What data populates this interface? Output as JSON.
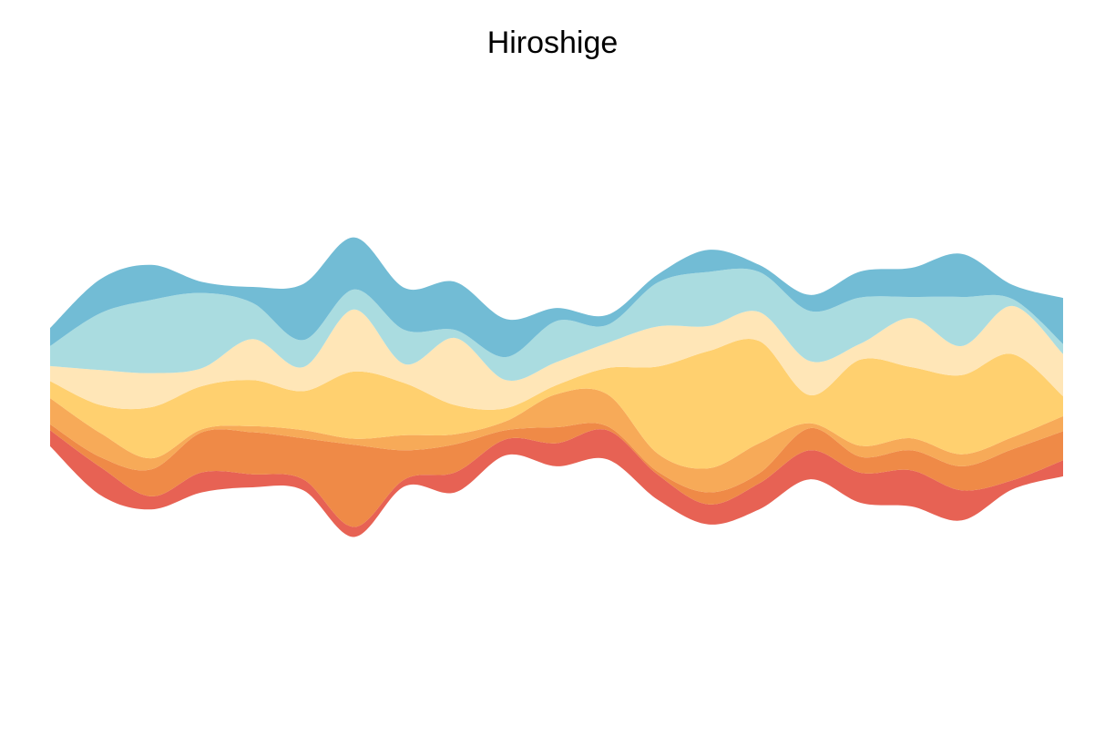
{
  "chart_data": {
    "type": "area",
    "subtype": "streamgraph",
    "title": "Hiroshige",
    "xlabel": "",
    "ylabel": "",
    "grid": false,
    "legend": "none",
    "axes_visible": false,
    "baseline": "centered",
    "x": [
      0,
      1,
      2,
      3,
      4,
      5,
      6,
      7,
      8,
      9,
      10,
      11,
      12,
      13,
      14,
      15,
      16,
      17,
      18,
      19,
      20
    ],
    "series": [
      {
        "color": "#E76254",
        "values": [
          1.6,
          2.8,
          1.3,
          2.0,
          1.3,
          1.1,
          1.0,
          0.7,
          2.0,
          1.6,
          2.3,
          2.9,
          2.5,
          2.0,
          2.6,
          2.9,
          3.0,
          3.6,
          3.0,
          0.9,
          1.6
        ]
      },
      {
        "color": "#EF8A47",
        "values": [
          0.6,
          1.0,
          2.7,
          4.0,
          4.2,
          4.1,
          8.2,
          2.9,
          2.8,
          0.9,
          1.6,
          0.4,
          0.3,
          1.2,
          1.0,
          2.2,
          1.6,
          2.0,
          2.4,
          3.1,
          2.9
        ]
      },
      {
        "color": "#F7AA58",
        "values": [
          2.6,
          2.4,
          1.1,
          0.3,
          0.6,
          0.8,
          0.6,
          1.5,
          1.0,
          0.9,
          3.3,
          3.2,
          1.8,
          2.4,
          3.0,
          0.5,
          1.1,
          1.2,
          1.2,
          1.2,
          1.5
        ]
      },
      {
        "color": "#FFD06F",
        "values": [
          1.7,
          2.8,
          5.1,
          4.3,
          4.6,
          3.9,
          6.7,
          5.2,
          2.9,
          1.3,
          0.9,
          2.6,
          8.7,
          11.7,
          10.2,
          2.8,
          8.6,
          7.1,
          7.9,
          8.3,
          2.0
        ]
      },
      {
        "color": "#FFE6B7",
        "values": [
          1.5,
          3.5,
          3.4,
          1.8,
          4.1,
          2.4,
          6.2,
          1.9,
          6.7,
          2.8,
          2.3,
          2.5,
          4.0,
          2.5,
          2.9,
          3.4,
          1.6,
          4.9,
          2.9,
          4.8,
          4.2
        ]
      },
      {
        "color": "#AADCE0",
        "values": [
          2.0,
          5.7,
          7.3,
          7.5,
          3.6,
          2.7,
          2.0,
          3.4,
          0.8,
          2.3,
          4.1,
          1.8,
          4.4,
          5.4,
          4.0,
          5.0,
          4.6,
          2.1,
          4.9,
          0.7,
          1.0
        ]
      },
      {
        "color": "#72BCD5",
        "values": [
          1.8,
          3.4,
          3.5,
          1.1,
          1.6,
          5.6,
          5.2,
          4.2,
          4.8,
          3.8,
          1.3,
          1.0,
          0.8,
          2.2,
          0.7,
          1.6,
          2.6,
          2.9,
          4.3,
          1.4,
          4.6
        ]
      }
    ]
  }
}
